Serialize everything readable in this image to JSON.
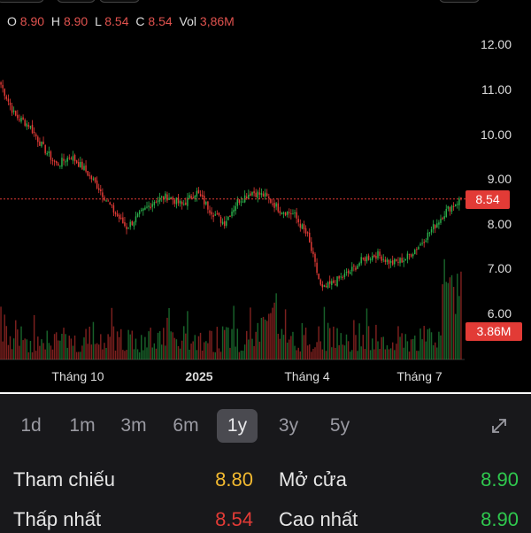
{
  "ohlc": {
    "o_label": "O",
    "o_value": "8.90",
    "h_label": "H",
    "h_value": "8.90",
    "l_label": "L",
    "l_value": "8.54",
    "c_label": "C",
    "c_value": "8.54",
    "vol_label": "Vol",
    "vol_value": "3,86M"
  },
  "chart_data": {
    "type": "candlestick",
    "y_ticks": [
      "12.00",
      "11.00",
      "10.00",
      "9.00",
      "8.00",
      "7.00",
      "6.00"
    ],
    "ylim": [
      5.5,
      12.5
    ],
    "x_ticks": [
      "Tháng 10",
      "2025",
      "Tháng 4",
      "Tháng 7"
    ],
    "last_price_label": "8.54",
    "last_volume_label": "3.86M",
    "price_line": 8.54,
    "close_path": [
      11.1,
      10.4,
      10.2,
      9.7,
      9.3,
      9.5,
      9.2,
      8.8,
      8.3,
      7.9,
      8.2,
      8.5,
      8.6,
      8.4,
      8.7,
      8.3,
      8.0,
      8.5,
      8.7,
      8.6,
      8.3,
      8.2,
      7.7,
      6.5,
      6.7,
      6.9,
      7.2,
      7.3,
      7.1,
      7.2,
      7.5,
      7.9,
      8.3,
      8.54
    ],
    "colors": {
      "up": "#2bb24c",
      "down": "#e23b36",
      "price_line": "#e23b36"
    }
  },
  "range_buttons": [
    "1d",
    "1m",
    "3m",
    "6m",
    "1y",
    "3y",
    "5y"
  ],
  "active_range": "1y",
  "expand_icon": "expand-arrows-icon",
  "stats": {
    "reference_label": "Tham chiếu",
    "reference_value": "8.80",
    "open_label": "Mở cửa",
    "open_value": "8.90",
    "low_label": "Thấp nhất",
    "low_value": "8.54",
    "high_label": "Cao nhất",
    "high_value": "8.90"
  }
}
